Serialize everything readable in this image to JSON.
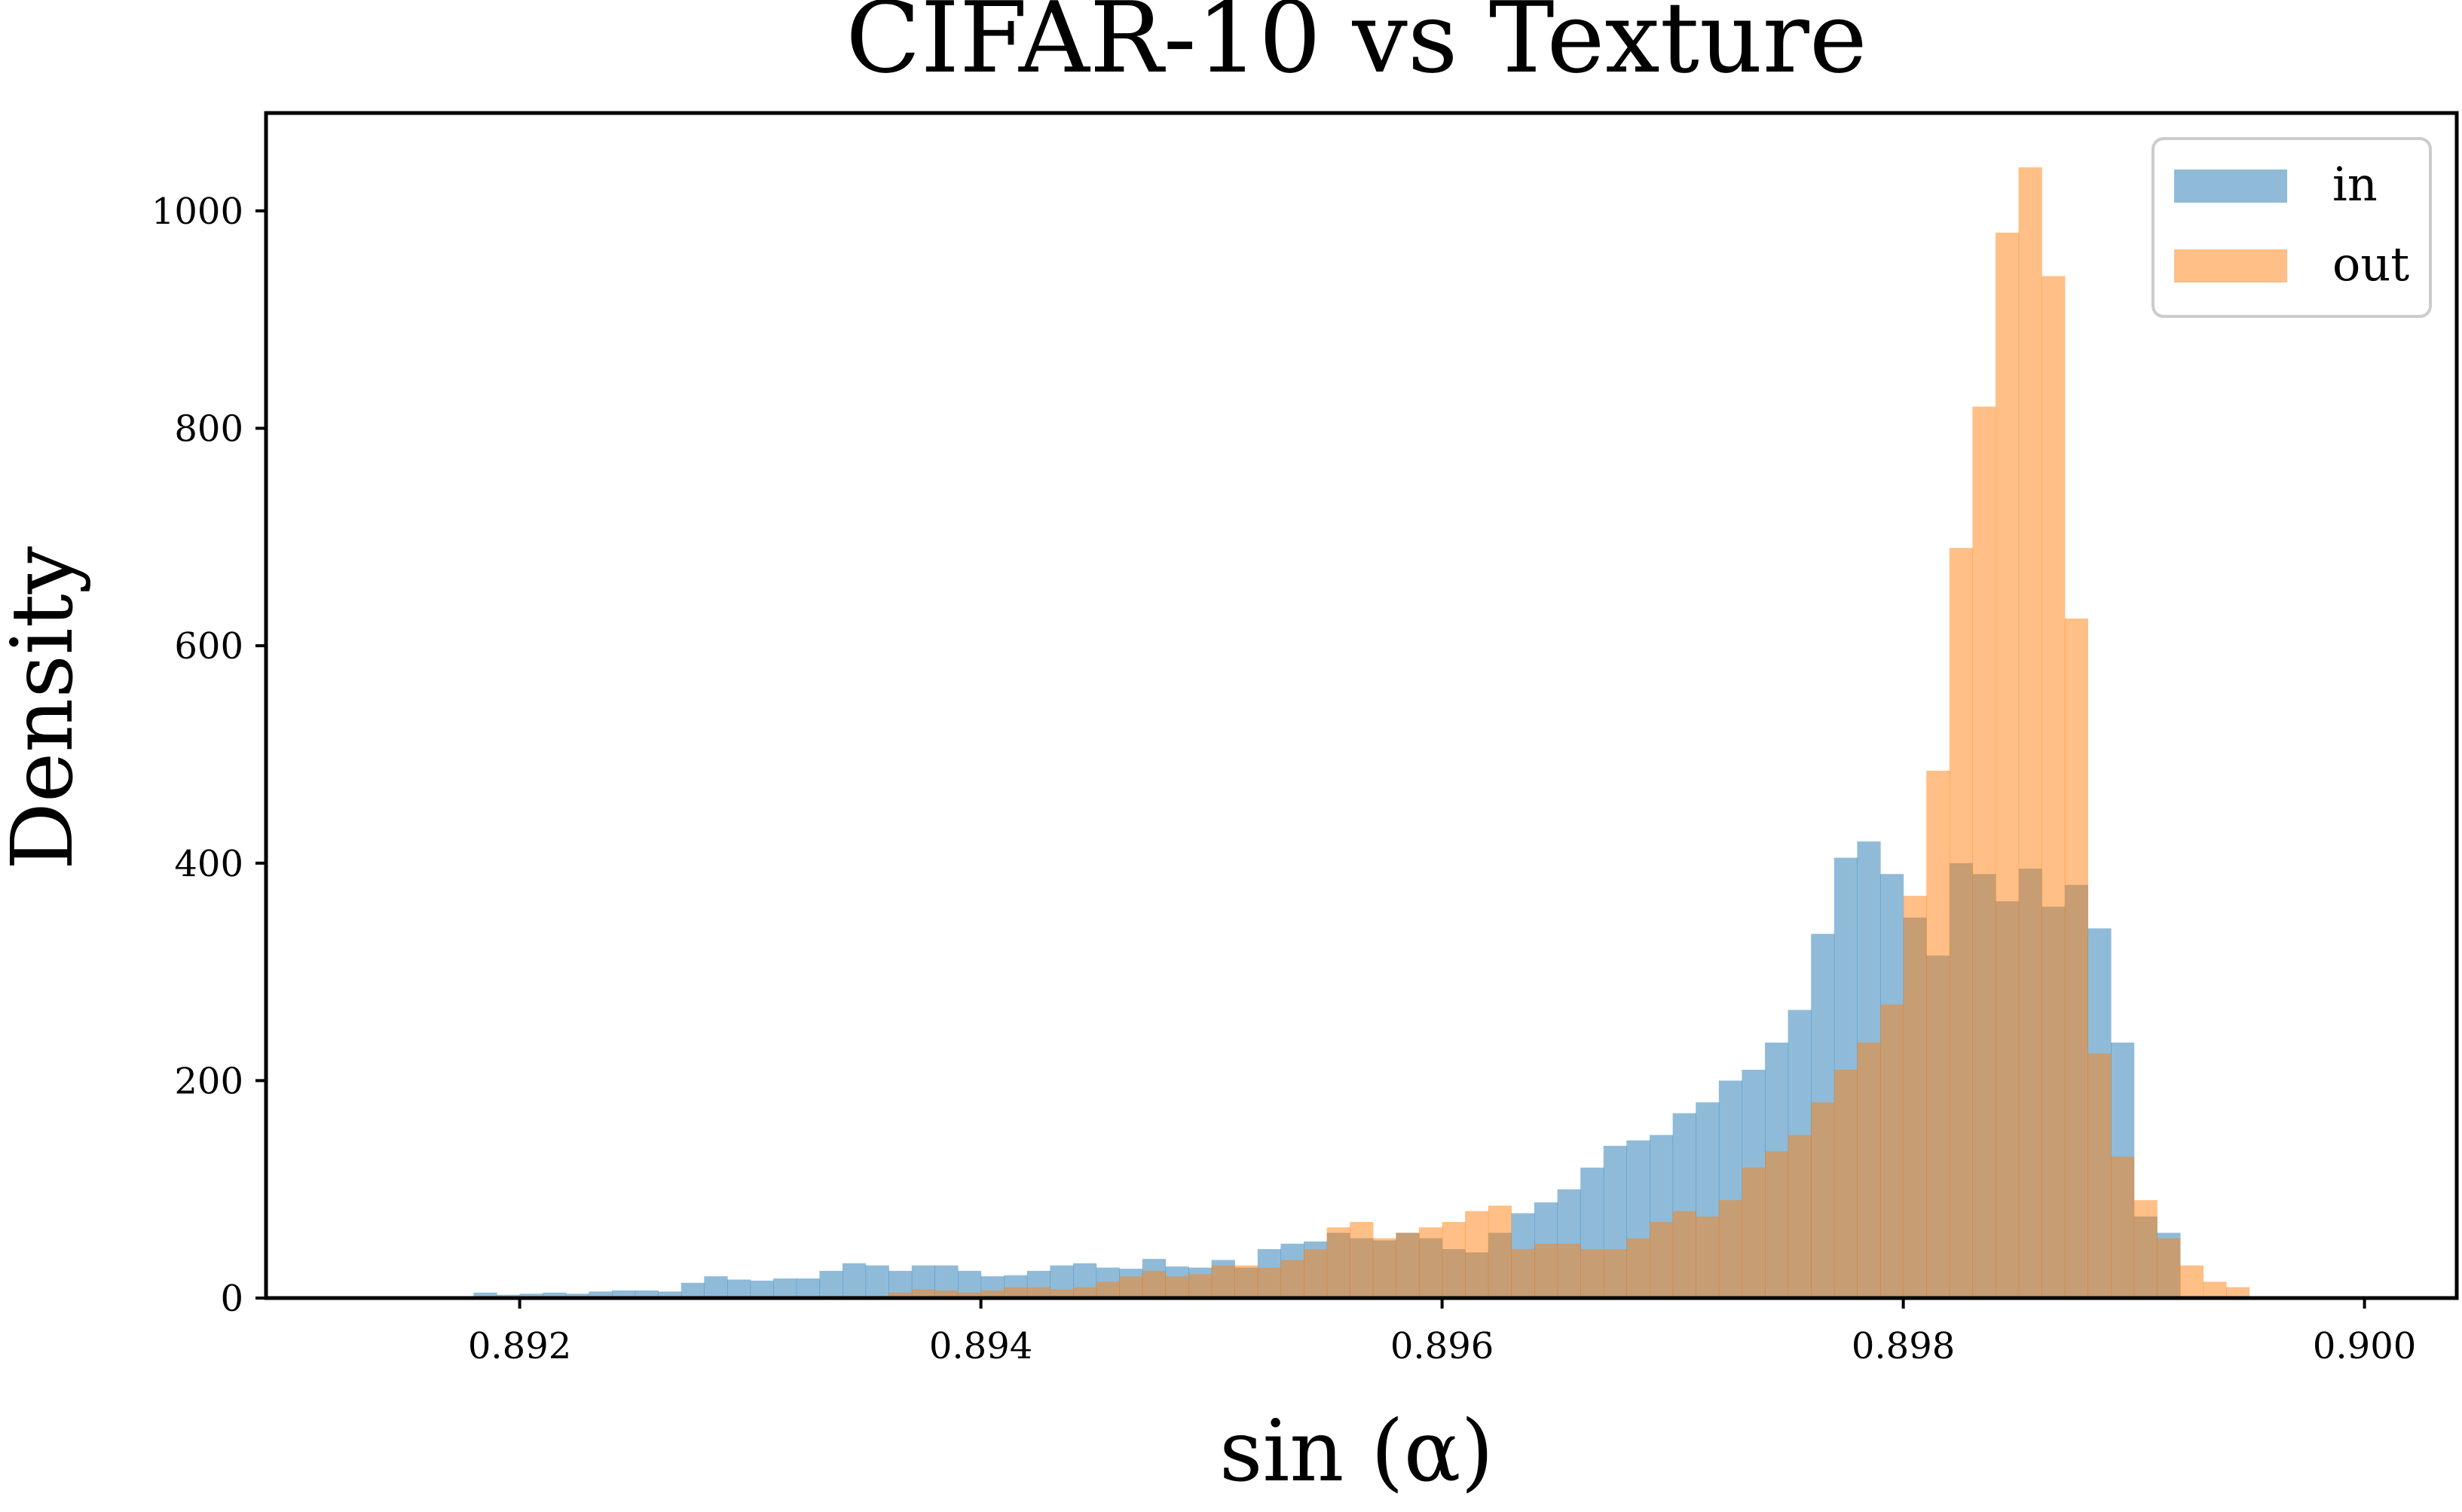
{
  "chart_data": {
    "type": "bar",
    "subtype": "histogram",
    "title": "CIFAR-10 vs Texture",
    "xlabel": "sin (α)",
    "ylabel": "Density",
    "xlim": [
      0.8909,
      0.9004
    ],
    "ylim": [
      0,
      1090
    ],
    "xticks": [
      0.892,
      0.894,
      0.896,
      0.898,
      0.9
    ],
    "xtick_labels": [
      "0.892",
      "0.894",
      "0.896",
      "0.898",
      "0.900"
    ],
    "yticks": [
      0,
      200,
      400,
      600,
      800,
      1000
    ],
    "ytick_labels": [
      "0",
      "200",
      "400",
      "600",
      "800",
      "1000"
    ],
    "grid": false,
    "legend_position": "top-right",
    "colors": {
      "in": "#1f77b4",
      "out": "#ff7f0e",
      "bar_opacity": 0.5
    },
    "series": [
      {
        "name": "in",
        "bin_start": 0.8918,
        "bin_width": 0.0001,
        "values": [
          5,
          3,
          4,
          5,
          4,
          6,
          7,
          7,
          6,
          14,
          20,
          17,
          16,
          18,
          18,
          25,
          32,
          30,
          25,
          30,
          30,
          25,
          20,
          21,
          25,
          30,
          32,
          28,
          27,
          36,
          29,
          28,
          35,
          28,
          45,
          50,
          52,
          60,
          55,
          53,
          60,
          55,
          45,
          42,
          60,
          78,
          88,
          100,
          120,
          140,
          145,
          150,
          170,
          180,
          200,
          210,
          235,
          265,
          335,
          405,
          420,
          390,
          350,
          315,
          400,
          390,
          365,
          395,
          360,
          380,
          340,
          235,
          75,
          60
        ]
      },
      {
        "name": "out",
        "bin_start": 0.8933,
        "bin_width": 0.0001,
        "values": [
          2,
          2,
          2,
          5,
          8,
          7,
          5,
          7,
          10,
          10,
          8,
          10,
          15,
          20,
          25,
          20,
          22,
          30,
          30,
          28,
          35,
          45,
          65,
          70,
          55,
          60,
          65,
          70,
          80,
          85,
          45,
          50,
          50,
          45,
          45,
          55,
          70,
          80,
          75,
          90,
          120,
          135,
          150,
          180,
          210,
          235,
          270,
          370,
          485,
          690,
          820,
          980,
          1040,
          940,
          625,
          225,
          130,
          90,
          55,
          30,
          15,
          10
        ]
      }
    ]
  }
}
